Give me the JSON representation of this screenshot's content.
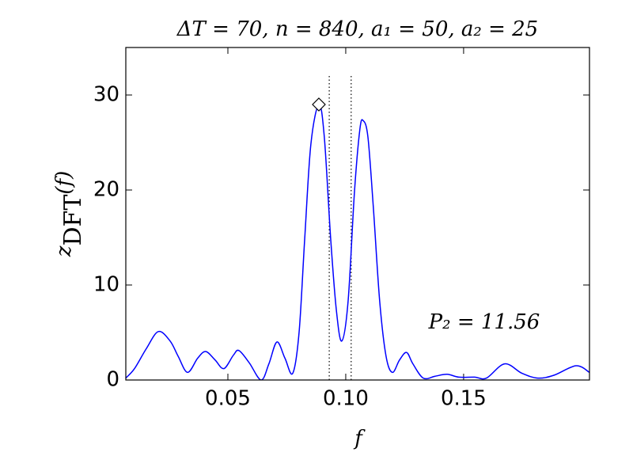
{
  "chart_data": {
    "type": "line",
    "title": "ΔT = 70, n = 840, a₁ = 50, a₂ = 25",
    "x_label": "f",
    "y_label": {
      "base": "z",
      "sub": "DFT",
      "rest": "(f)"
    },
    "annotation": "P₂ = 11.56",
    "xlim": [
      0.0067,
      0.2034
    ],
    "ylim": [
      0,
      35
    ],
    "xticks": [
      0.05,
      {
        "value": 0.1,
        "label": "0.10"
      },
      0.15
    ],
    "yticks": [
      0,
      10,
      20,
      30
    ],
    "vlines": [
      0.093,
      0.1023
    ],
    "vline_top": 32,
    "marker": {
      "x": 0.0886,
      "y": 29.0
    },
    "series": [
      {
        "name": "z_DFT",
        "color": "#0000ff",
        "x": [
          0.0067,
          0.0104,
          0.0154,
          0.0205,
          0.0255,
          0.0289,
          0.0329,
          0.0372,
          0.0406,
          0.0446,
          0.0483,
          0.0523,
          0.0547,
          0.0591,
          0.0641,
          0.0674,
          0.0708,
          0.0742,
          0.0775,
          0.0802,
          0.0826,
          0.0852,
          0.0886,
          0.0909,
          0.0936,
          0.096,
          0.0983,
          0.101,
          0.1037,
          0.106,
          0.1074,
          0.1094,
          0.1117,
          0.1144,
          0.1171,
          0.1198,
          0.1228,
          0.1258,
          0.1285,
          0.1329,
          0.1379,
          0.143,
          0.148,
          0.1547,
          0.1597,
          0.1674,
          0.1748,
          0.1815,
          0.1883,
          0.1977,
          0.2034
        ],
        "values": [
          0.2,
          1.2,
          3.3,
          5.1,
          4.1,
          2.5,
          0.8,
          2.3,
          3.0,
          2.1,
          1.2,
          2.6,
          3.1,
          1.8,
          0.0,
          1.7,
          4.0,
          2.3,
          0.7,
          5.0,
          14.9,
          24.8,
          29.0,
          25.6,
          14.9,
          7.4,
          4.1,
          8.3,
          19.8,
          26.4,
          27.3,
          25.6,
          18.2,
          8.3,
          2.5,
          0.8,
          2.1,
          2.9,
          1.7,
          0.2,
          0.4,
          0.6,
          0.3,
          0.3,
          0.2,
          1.7,
          0.7,
          0.2,
          0.5,
          1.5,
          0.8
        ]
      }
    ]
  }
}
